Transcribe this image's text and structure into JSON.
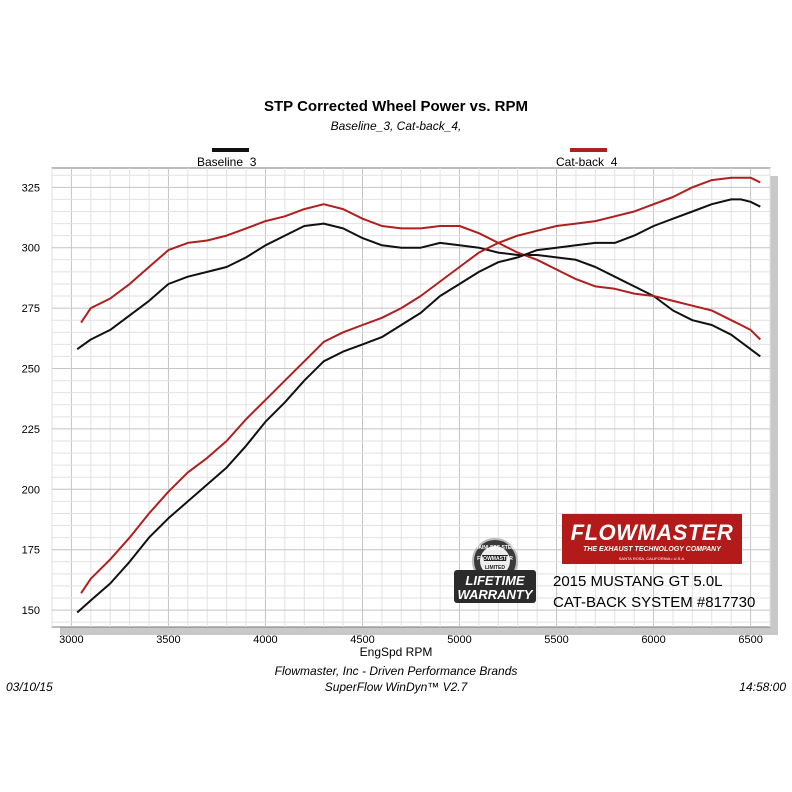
{
  "chart_data": {
    "type": "line",
    "title": "STP Corrected Wheel Power vs. RPM",
    "subtitle": "Baseline_3, Cat-back_4,",
    "xlabel": "EngSpd  RPM",
    "ylabel": "",
    "xlim": [
      2900,
      6600
    ],
    "ylim": [
      143,
      333
    ],
    "xticks": [
      3000,
      3500,
      4000,
      4500,
      5000,
      5500,
      6000,
      6500
    ],
    "yticks": [
      150,
      175,
      200,
      225,
      250,
      275,
      300,
      325
    ],
    "grid": true,
    "legend": "top",
    "series": [
      {
        "name": "Baseline_3",
        "group": "power",
        "color": "#111111",
        "x": [
          3030,
          3100,
          3200,
          3300,
          3400,
          3500,
          3600,
          3700,
          3800,
          3900,
          4000,
          4100,
          4200,
          4300,
          4400,
          4500,
          4600,
          4700,
          4800,
          4900,
          5000,
          5100,
          5200,
          5300,
          5400,
          5500,
          5600,
          5700,
          5800,
          5900,
          6000,
          6100,
          6200,
          6300,
          6400,
          6450,
          6500,
          6550
        ],
        "y": [
          258,
          262,
          266,
          272,
          278,
          285,
          288,
          290,
          292,
          296,
          301,
          305,
          309,
          310,
          308,
          304,
          301,
          300,
          300,
          302,
          301,
          300,
          298,
          297,
          297,
          296,
          295,
          292,
          288,
          284,
          280,
          274,
          270,
          268,
          264,
          261,
          258,
          255
        ]
      },
      {
        "name": "Cat-back_4",
        "group": "power",
        "color": "#b01e1e",
        "x": [
          3050,
          3100,
          3200,
          3300,
          3400,
          3500,
          3600,
          3700,
          3800,
          3900,
          4000,
          4100,
          4200,
          4300,
          4400,
          4500,
          4600,
          4700,
          4800,
          4900,
          5000,
          5100,
          5200,
          5300,
          5400,
          5500,
          5600,
          5700,
          5800,
          5900,
          6000,
          6100,
          6200,
          6300,
          6400,
          6450,
          6500,
          6550
        ],
        "y": [
          269,
          275,
          279,
          285,
          292,
          299,
          302,
          303,
          305,
          308,
          311,
          313,
          316,
          318,
          316,
          312,
          309,
          308,
          308,
          309,
          309,
          306,
          302,
          298,
          295,
          291,
          287,
          284,
          283,
          281,
          280,
          278,
          276,
          274,
          270,
          268,
          266,
          262
        ]
      },
      {
        "name": "Baseline_3",
        "group": "torque",
        "color": "#111111",
        "x": [
          3030,
          3100,
          3200,
          3300,
          3400,
          3500,
          3600,
          3700,
          3800,
          3900,
          4000,
          4100,
          4200,
          4300,
          4400,
          4500,
          4600,
          4700,
          4800,
          4900,
          5000,
          5100,
          5200,
          5300,
          5400,
          5500,
          5600,
          5700,
          5800,
          5900,
          6000,
          6100,
          6200,
          6300,
          6400,
          6450,
          6500,
          6550
        ],
        "y": [
          149,
          154,
          161,
          170,
          180,
          188,
          195,
          202,
          209,
          218,
          228,
          236,
          245,
          253,
          257,
          260,
          263,
          268,
          273,
          280,
          285,
          290,
          294,
          296,
          299,
          300,
          301,
          302,
          302,
          305,
          309,
          312,
          315,
          318,
          320,
          320,
          319,
          317
        ]
      },
      {
        "name": "Cat-back_4",
        "group": "torque",
        "color": "#b01e1e",
        "x": [
          3050,
          3100,
          3200,
          3300,
          3400,
          3500,
          3600,
          3700,
          3800,
          3900,
          4000,
          4100,
          4200,
          4300,
          4400,
          4500,
          4600,
          4700,
          4800,
          4900,
          5000,
          5100,
          5200,
          5300,
          5400,
          5500,
          5600,
          5700,
          5800,
          5900,
          6000,
          6100,
          6200,
          6300,
          6400,
          6450,
          6500,
          6550
        ],
        "y": [
          157,
          163,
          171,
          180,
          190,
          199,
          207,
          213,
          220,
          229,
          237,
          245,
          253,
          261,
          265,
          268,
          271,
          275,
          280,
          286,
          292,
          298,
          302,
          305,
          307,
          309,
          310,
          311,
          313,
          315,
          318,
          321,
          325,
          328,
          329,
          329,
          329,
          327
        ]
      }
    ]
  },
  "legend": {
    "items": [
      {
        "label": "Baseline_3",
        "color": "#111111"
      },
      {
        "label": "Cat-back_4",
        "color": "#b01e1e"
      }
    ]
  },
  "footer": {
    "date": "03/10/15",
    "time": "14:58:00",
    "company": "Flowmaster, Inc - Driven Performance Brands",
    "software": "SuperFlow WinDyn™  V2.7"
  },
  "brand": {
    "name": "FLOWMASTER",
    "tagline": "THE EXHAUST TECHNOLOGY COMPANY",
    "location": "SANTA ROSA, CALIFORNIA • U.S.A.",
    "color": "#b31a1a"
  },
  "badge": {
    "top_text": "STAINLESS STEEL",
    "brand": "FLOWMASTER",
    "limited": "LIMITED",
    "line1": "LIFETIME",
    "line2": "WARRANTY"
  },
  "caption": {
    "line1": "2015 MUSTANG GT 5.0L",
    "line2": "CAT-BACK SYSTEM #817730"
  }
}
